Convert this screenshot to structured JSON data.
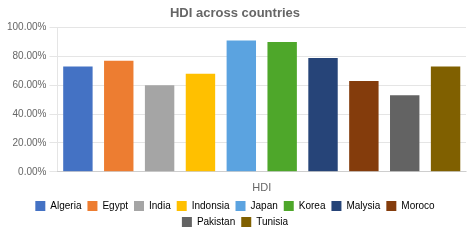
{
  "chart_data": {
    "type": "bar",
    "title": "HDI across countries",
    "xlabel": "HDI",
    "categories": [
      "Algeria",
      "Egypt",
      "India",
      "Indonsia",
      "Japan",
      "Korea",
      "Malysia",
      "Moroco",
      "Pakistan",
      "Tunisia"
    ],
    "values": [
      0.73,
      0.77,
      0.6,
      0.68,
      0.91,
      0.9,
      0.79,
      0.63,
      0.53,
      0.73
    ],
    "colors": [
      "#4472C4",
      "#ED7D31",
      "#A5A5A5",
      "#FFC000",
      "#5BA3E0",
      "#4EA72A",
      "#264478",
      "#843C0C",
      "#636363",
      "#806000"
    ],
    "ylim": [
      0,
      1.0
    ],
    "yticks": [
      {
        "value": 0.0,
        "label": "0.00%"
      },
      {
        "value": 0.2,
        "label": "20.00%"
      },
      {
        "value": 0.4,
        "label": "40.00%"
      },
      {
        "value": 0.6,
        "label": "60.00%"
      },
      {
        "value": 0.8,
        "label": "80.00%"
      },
      {
        "value": 1.0,
        "label": "100.00%"
      }
    ],
    "grid": true,
    "legend": "bottom",
    "tick_labels": "y"
  }
}
